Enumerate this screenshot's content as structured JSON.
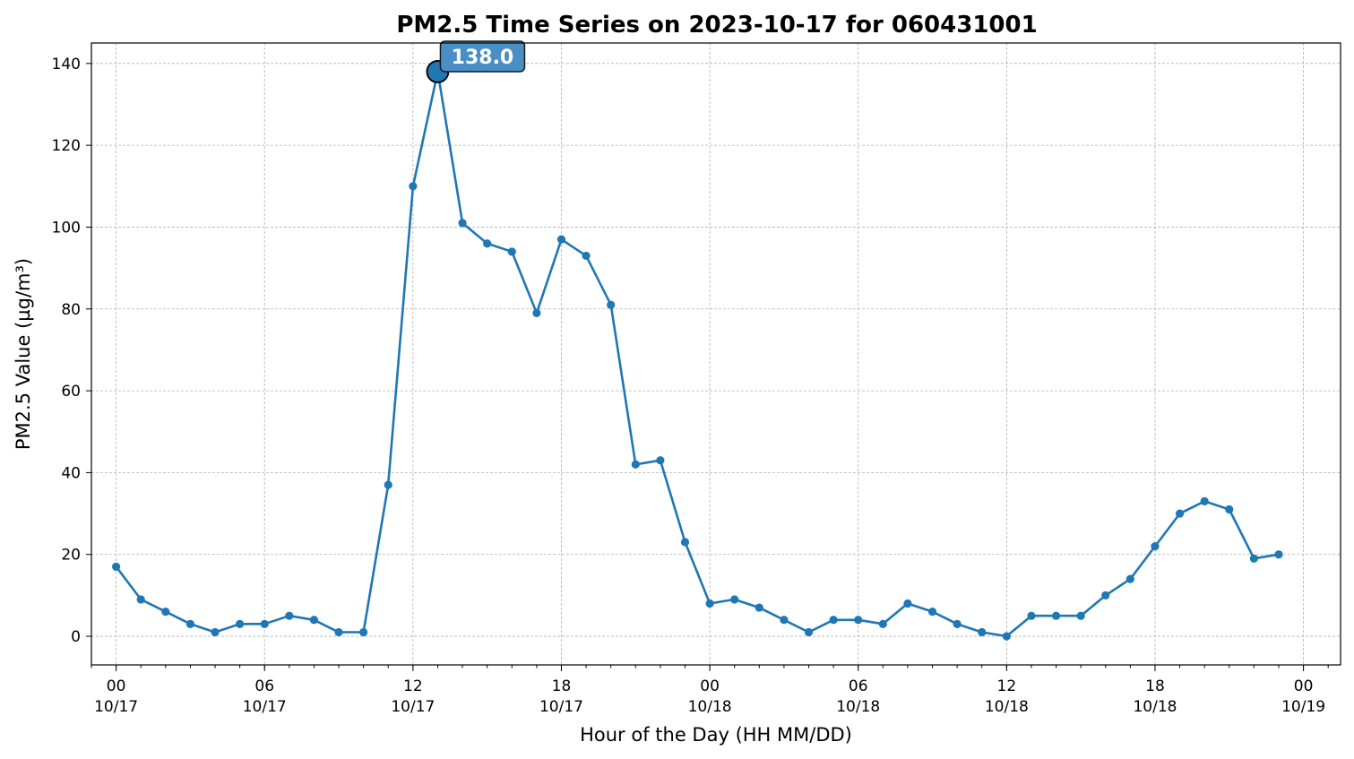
{
  "chart_data": {
    "type": "line",
    "title": "PM2.5 Time Series on 2023-10-17 for 060431001",
    "xlabel": "Hour of the Day (HH MM/DD)",
    "ylabel": "PM2.5 Value (µg/m³)",
    "ylim": [
      -7,
      145
    ],
    "xlim": [
      "2023-10-16 23:00",
      "2023-10-19 01:30"
    ],
    "yticks": [
      0,
      20,
      40,
      60,
      80,
      100,
      120,
      140
    ],
    "xticks": [
      {
        "time": "2023-10-17 00:00",
        "hour": "00",
        "date": "10/17"
      },
      {
        "time": "2023-10-17 06:00",
        "hour": "06",
        "date": "10/17"
      },
      {
        "time": "2023-10-17 12:00",
        "hour": "12",
        "date": "10/17"
      },
      {
        "time": "2023-10-17 18:00",
        "hour": "18",
        "date": "10/17"
      },
      {
        "time": "2023-10-18 00:00",
        "hour": "00",
        "date": "10/18"
      },
      {
        "time": "2023-10-18 06:00",
        "hour": "06",
        "date": "10/18"
      },
      {
        "time": "2023-10-18 12:00",
        "hour": "12",
        "date": "10/18"
      },
      {
        "time": "2023-10-18 18:00",
        "hour": "18",
        "date": "10/18"
      },
      {
        "time": "2023-10-19 00:00",
        "hour": "00",
        "date": "10/19"
      }
    ],
    "grid": true,
    "series": [
      {
        "color": "#1f77b4",
        "x": [
          "2023-10-17 00:00",
          "2023-10-17 01:00",
          "2023-10-17 02:00",
          "2023-10-17 03:00",
          "2023-10-17 04:00",
          "2023-10-17 05:00",
          "2023-10-17 06:00",
          "2023-10-17 07:00",
          "2023-10-17 08:00",
          "2023-10-17 09:00",
          "2023-10-17 10:00",
          "2023-10-17 11:00",
          "2023-10-17 12:00",
          "2023-10-17 13:00",
          "2023-10-17 14:00",
          "2023-10-17 15:00",
          "2023-10-17 16:00",
          "2023-10-17 17:00",
          "2023-10-17 18:00",
          "2023-10-17 19:00",
          "2023-10-17 20:00",
          "2023-10-17 21:00",
          "2023-10-17 22:00",
          "2023-10-17 23:00",
          "2023-10-18 00:00",
          "2023-10-18 01:00",
          "2023-10-18 02:00",
          "2023-10-18 03:00",
          "2023-10-18 04:00",
          "2023-10-18 05:00",
          "2023-10-18 06:00",
          "2023-10-18 07:00",
          "2023-10-18 08:00",
          "2023-10-18 09:00",
          "2023-10-18 10:00",
          "2023-10-18 11:00",
          "2023-10-18 12:00",
          "2023-10-18 13:00",
          "2023-10-18 14:00",
          "2023-10-18 15:00",
          "2023-10-18 16:00",
          "2023-10-18 17:00",
          "2023-10-18 18:00",
          "2023-10-18 19:00",
          "2023-10-18 20:00",
          "2023-10-18 21:00",
          "2023-10-18 22:00",
          "2023-10-18 23:00"
        ],
        "y": [
          17,
          9,
          6,
          3,
          1,
          3,
          3,
          5,
          4,
          1,
          1,
          37,
          110,
          138,
          101,
          96,
          94,
          79,
          97,
          93,
          81,
          42,
          43,
          23,
          8,
          9,
          7,
          4,
          1,
          4,
          4,
          3,
          8,
          6,
          3,
          1,
          0,
          5,
          5,
          5,
          10,
          14,
          22,
          30,
          33,
          31,
          19,
          20
        ]
      }
    ],
    "annotation": {
      "x": "2023-10-17 13:00",
      "y": 138,
      "text": "138.0",
      "box_color": "#4a8fc4",
      "marker_color": "#1f77b4"
    }
  }
}
